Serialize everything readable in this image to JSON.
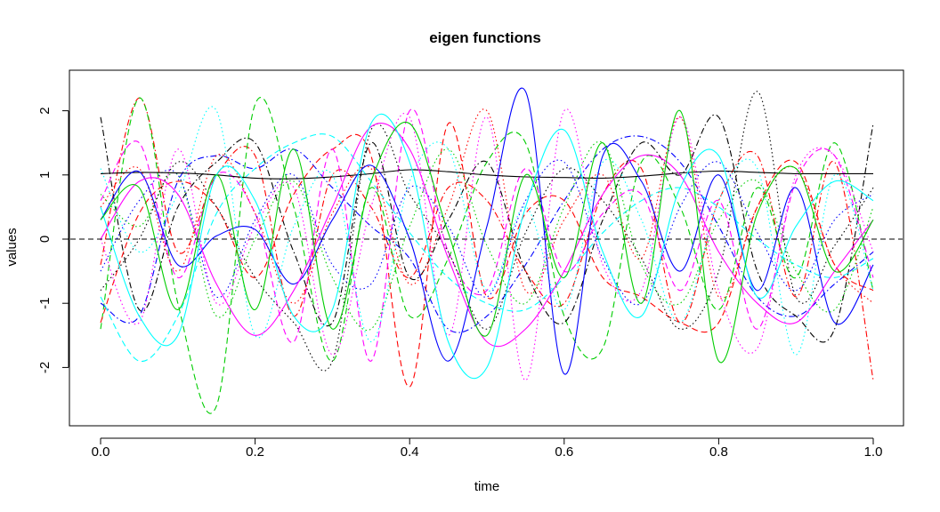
{
  "chart_data": {
    "type": "line",
    "title": "eigen functions",
    "xlabel": "time",
    "ylabel": "values",
    "xlim": [
      0,
      1
    ],
    "ylim": [
      -2.9,
      2.6
    ],
    "x_ticks": [
      0.0,
      0.2,
      0.4,
      0.6,
      0.8,
      1.0
    ],
    "x_tick_labels": [
      "0.0",
      "0.2",
      "0.4",
      "0.6",
      "0.8",
      "1.0"
    ],
    "y_ticks": [
      -2,
      -1,
      0,
      1,
      2
    ],
    "y_tick_labels": [
      "-2",
      "-1",
      "0",
      "1",
      "2"
    ],
    "reference_line": {
      "y": 0,
      "color": "#000000",
      "style": "dashed"
    },
    "x": [
      0.0,
      0.05,
      0.1,
      0.15,
      0.2,
      0.25,
      0.3,
      0.35,
      0.4,
      0.45,
      0.5,
      0.55,
      0.6,
      0.65,
      0.7,
      0.75,
      0.8,
      0.85,
      0.9,
      0.95,
      1.0
    ],
    "series": [
      {
        "color": "#000000",
        "style": "solid",
        "values": [
          1.02,
          1.04,
          1.03,
          1.0,
          0.95,
          0.94,
          0.97,
          1.02,
          1.08,
          1.05,
          1.0,
          0.97,
          0.96,
          0.95,
          0.98,
          1.03,
          1.06,
          1.04,
          1.02,
          1.02,
          1.02
        ]
      },
      {
        "color": "#0000ff",
        "style": "solid",
        "values": [
          0.3,
          1.05,
          -0.4,
          0.05,
          0.15,
          -0.7,
          0.3,
          1.15,
          0.0,
          -1.9,
          0.2,
          2.3,
          -2.1,
          1.3,
          0.9,
          -0.5,
          1.0,
          -0.8,
          0.8,
          -1.3,
          -0.4
        ]
      },
      {
        "color": "#ff00ff",
        "style": "solid",
        "values": [
          0.0,
          0.9,
          0.7,
          -0.7,
          -1.5,
          -0.8,
          0.5,
          1.75,
          1.4,
          -0.3,
          -1.6,
          -1.4,
          -0.5,
          0.7,
          1.3,
          1.0,
          -0.2,
          -1.0,
          -1.3,
          -0.5,
          0.3
        ]
      },
      {
        "color": "#00ffff",
        "style": "solid",
        "values": [
          0.5,
          -1.2,
          -1.5,
          1.0,
          0.6,
          -1.2,
          -1.1,
          1.8,
          1.2,
          -1.6,
          -2.0,
          0.5,
          1.7,
          -0.2,
          -1.2,
          0.8,
          1.3,
          -0.9,
          0.2,
          0.9,
          0.6
        ]
      },
      {
        "color": "#00cd00",
        "style": "solid",
        "values": [
          0.3,
          0.8,
          -1.1,
          1.0,
          -1.1,
          1.4,
          -1.4,
          0.9,
          1.8,
          0.1,
          -1.5,
          1.0,
          -0.6,
          1.5,
          -1.0,
          2.0,
          -1.9,
          0.4,
          1.1,
          -0.5,
          0.3
        ]
      },
      {
        "color": "#ff0000",
        "style": "dashdot",
        "values": [
          -0.4,
          2.2,
          -0.2,
          1.0,
          1.3,
          -1.2,
          1.0,
          0.5,
          -0.6,
          0.8,
          0.6,
          -0.5,
          -1.0,
          0.7,
          1.1,
          -1.3,
          0.6,
          1.3,
          -0.9,
          1.2,
          -2.2
        ]
      },
      {
        "color": "#00cd00",
        "style": "dashed",
        "values": [
          -1.4,
          2.2,
          -1.0,
          -2.6,
          2.1,
          0.5,
          -1.9,
          0.8,
          -1.2,
          -0.3,
          1.2,
          1.5,
          -1.2,
          -1.7,
          1.2,
          0.5,
          -1.1,
          0.8,
          -0.6,
          1.5,
          -0.8
        ]
      },
      {
        "color": "#0000ff",
        "style": "dashdot",
        "values": [
          -1.0,
          -1.2,
          0.9,
          1.3,
          1.1,
          1.4,
          0.8,
          0.2,
          -0.3,
          -1.4,
          -1.2,
          -0.4,
          0.6,
          1.4,
          1.6,
          1.2,
          0.2,
          -0.9,
          -1.2,
          -0.7,
          -0.2
        ]
      },
      {
        "color": "#000000",
        "style": "dashdot",
        "values": [
          1.9,
          -1.1,
          0.5,
          1.2,
          1.5,
          -0.2,
          -1.3,
          1.5,
          -0.6,
          0.3,
          1.2,
          -0.5,
          -1.3,
          0.3,
          1.5,
          1.0,
          1.9,
          -0.5,
          -1.2,
          -1.4,
          1.8
        ]
      },
      {
        "color": "#ff0000",
        "style": "dashed",
        "values": [
          -1.3,
          0.4,
          0.9,
          0.5,
          -0.6,
          0.7,
          1.4,
          1.3,
          -2.3,
          1.8,
          -0.9,
          0.4,
          0.6,
          -0.6,
          -0.9,
          -1.3,
          -1.3,
          0.5,
          1.2,
          -0.4,
          -0.8
        ]
      },
      {
        "color": "#00ffff",
        "style": "dashed",
        "values": [
          -0.9,
          -1.9,
          -1.2,
          0.4,
          1.1,
          1.5,
          1.6,
          0.9,
          0.1,
          -0.6,
          -1.0,
          -1.1,
          -0.6,
          0.1,
          0.6,
          0.8,
          0.5,
          0.0,
          -0.4,
          -0.6,
          -0.3
        ]
      },
      {
        "color": "#ff00ff",
        "style": "dashed",
        "values": [
          0.6,
          1.5,
          -0.6,
          1.0,
          0.4,
          -1.6,
          1.4,
          -1.9,
          2.0,
          -0.2,
          -0.8,
          1.1,
          -0.5,
          0.4,
          0.7,
          -0.8,
          0.6,
          -1.4,
          0.9,
          1.3,
          -0.6
        ]
      },
      {
        "color": "#00cd00",
        "style": "dotted",
        "values": [
          0.7,
          0.2,
          1.0,
          -1.2,
          0.0,
          0.9,
          -0.6,
          -1.4,
          0.2,
          1.4,
          -0.1,
          -1.0,
          0.5,
          1.5,
          -0.4,
          -1.0,
          0.3,
          0.9,
          -0.5,
          -1.1,
          0.5
        ]
      },
      {
        "color": "#000000",
        "style": "dotted",
        "values": [
          -0.8,
          0.0,
          1.2,
          0.5,
          -0.6,
          -1.3,
          -1.9,
          1.7,
          0.7,
          -0.2,
          -1.4,
          0.1,
          1.1,
          0.6,
          -0.3,
          -1.4,
          -0.5,
          2.3,
          -0.9,
          -0.1,
          0.8
        ]
      },
      {
        "color": "#ff00ff",
        "style": "dotted",
        "values": [
          0.0,
          -1.3,
          1.4,
          -1.0,
          0.2,
          0.8,
          -1.8,
          0.5,
          1.9,
          -1.5,
          1.9,
          -2.2,
          2.0,
          -0.4,
          -0.8,
          1.9,
          -0.8,
          -1.7,
          1.0,
          1.3,
          -0.2
        ]
      },
      {
        "color": "#00ffff",
        "style": "dotted",
        "values": [
          1.1,
          -0.2,
          0.7,
          2.0,
          -1.5,
          0.2,
          1.0,
          -1.6,
          0.9,
          1.4,
          -0.8,
          0.5,
          -1.1,
          1.2,
          0.3,
          -1.3,
          0.6,
          1.1,
          -1.8,
          1.0,
          -0.8
        ]
      },
      {
        "color": "#ff0000",
        "style": "dotted",
        "values": [
          0.5,
          1.1,
          -0.5,
          1.3,
          0.4,
          -1.0,
          0.4,
          1.1,
          -0.7,
          0.5,
          2.0,
          -0.8,
          0.3,
          1.0,
          -0.3,
          1.9,
          -0.9,
          0.5,
          1.1,
          -0.4,
          -1.0
        ]
      },
      {
        "color": "#0000ff",
        "style": "dotted",
        "values": [
          -0.5,
          0.6,
          1.0,
          -0.9,
          0.3,
          1.0,
          -0.4,
          -0.7,
          0.8,
          0.2,
          -0.9,
          0.6,
          1.2,
          -0.3,
          -1.0,
          0.5,
          1.2,
          0.1,
          -0.8,
          0.3,
          0.7
        ]
      }
    ]
  }
}
